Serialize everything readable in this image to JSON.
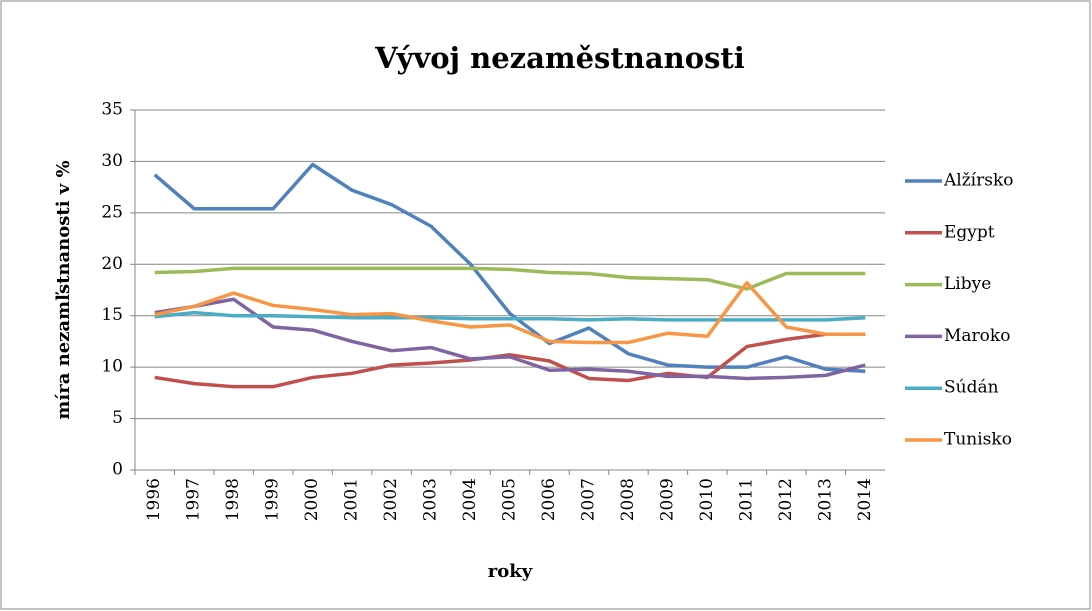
{
  "chart_data": {
    "type": "line",
    "title": "Vývoj nezaměstnanosti",
    "x_label": "roky",
    "y_label": "míra nezamľstnanosti v %",
    "categories": [
      "1996",
      "1997",
      "1998",
      "1999",
      "2000",
      "2001",
      "2002",
      "2003",
      "2004",
      "2005",
      "2006",
      "2007",
      "2008",
      "2009",
      "2010",
      "2011",
      "2012",
      "2013",
      "2014"
    ],
    "series": [
      {
        "name": "Alžírsko",
        "color": "#4f81bd",
        "values": [
          28.7,
          25.4,
          25.4,
          25.4,
          29.7,
          27.2,
          25.8,
          23.7,
          20.0,
          15.2,
          12.3,
          13.8,
          11.3,
          10.2,
          10.0,
          10.0,
          11.0,
          9.8,
          9.6
        ]
      },
      {
        "name": "Egypt",
        "color": "#c0504d",
        "values": [
          9.0,
          8.4,
          8.1,
          8.1,
          9.0,
          9.4,
          10.2,
          10.4,
          10.7,
          11.2,
          10.6,
          8.9,
          8.7,
          9.4,
          9.0,
          12.0,
          12.7,
          13.2,
          13.2
        ]
      },
      {
        "name": "Libye",
        "color": "#9bbb59",
        "values": [
          19.2,
          19.3,
          19.6,
          19.6,
          19.6,
          19.6,
          19.6,
          19.6,
          19.6,
          19.5,
          19.2,
          19.1,
          18.7,
          18.6,
          18.5,
          17.6,
          19.1,
          19.1,
          19.1
        ]
      },
      {
        "name": "Maroko",
        "color": "#8064a2",
        "values": [
          15.3,
          15.9,
          16.6,
          13.9,
          13.6,
          12.5,
          11.6,
          11.9,
          10.8,
          11.0,
          9.7,
          9.8,
          9.6,
          9.1,
          9.1,
          8.9,
          9.0,
          9.2,
          10.2
        ]
      },
      {
        "name": "Súdán",
        "color": "#4bacc6",
        "values": [
          14.9,
          15.3,
          15.0,
          15.0,
          14.9,
          14.8,
          14.8,
          14.8,
          14.7,
          14.7,
          14.7,
          14.6,
          14.7,
          14.6,
          14.6,
          14.6,
          14.6,
          14.6,
          14.8
        ]
      },
      {
        "name": "Tunisko",
        "color": "#f79646",
        "values": [
          15.1,
          15.9,
          17.2,
          16.0,
          15.6,
          15.1,
          15.2,
          14.5,
          13.9,
          14.1,
          12.5,
          12.4,
          12.4,
          13.3,
          13.0,
          18.2,
          13.9,
          13.2,
          13.2
        ]
      }
    ],
    "ylim": [
      0,
      35
    ],
    "yticks": [
      0,
      5,
      10,
      15,
      20,
      25,
      30,
      35
    ],
    "grid": true,
    "legend": "right"
  }
}
